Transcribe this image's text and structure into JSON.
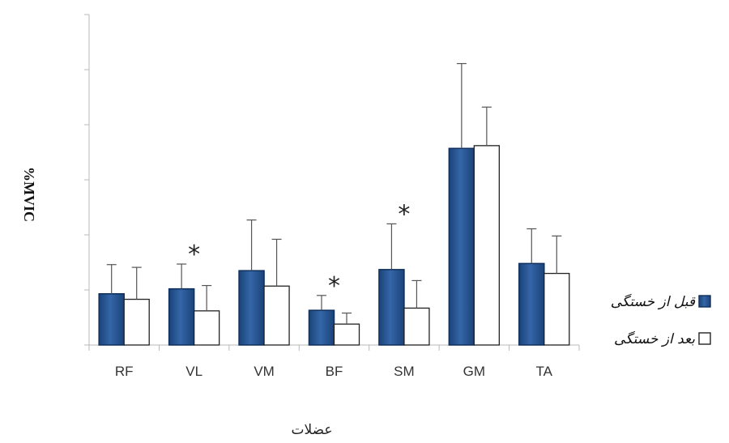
{
  "chart_data": {
    "type": "bar",
    "title": "",
    "xlabel": "عضلات",
    "ylabel": "%MVIC",
    "categories": [
      "RF",
      "VL",
      "VM",
      "BF",
      "SM",
      "GM",
      "TA"
    ],
    "ylim": [
      0,
      600
    ],
    "ytick_step": 100,
    "grid": false,
    "legend_position": "right",
    "series": [
      {
        "name": "قبل از خستگی",
        "color": "#1f4e8c",
        "values": [
          93,
          102,
          135,
          63,
          137,
          357,
          148
        ],
        "errors": [
          53,
          45,
          92,
          27,
          83,
          154,
          63
        ]
      },
      {
        "name": "بعد از خستگی",
        "color": "#ffffff",
        "values": [
          83,
          62,
          107,
          38,
          67,
          362,
          130
        ],
        "errors": [
          58,
          46,
          85,
          20,
          50,
          70,
          68
        ]
      }
    ],
    "annotations": [
      {
        "category": "VL",
        "text": "*"
      },
      {
        "category": "BF",
        "text": "*"
      },
      {
        "category": "SM",
        "text": "*"
      }
    ]
  }
}
